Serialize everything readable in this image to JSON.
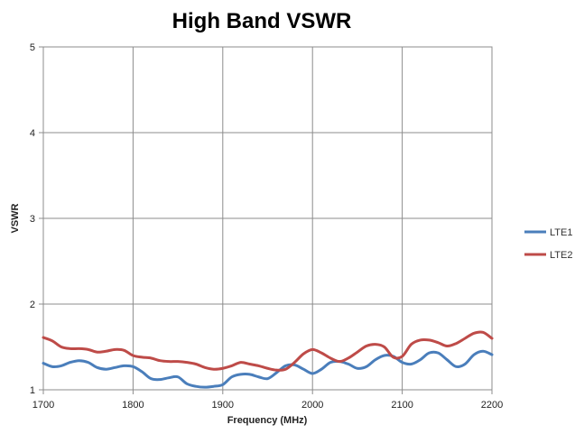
{
  "chart_data": {
    "type": "line",
    "title": "High Band VSWR",
    "xlabel": "Frequency (MHz)",
    "ylabel": "VSWR",
    "xlim": [
      1700,
      2200
    ],
    "ylim": [
      1,
      5
    ],
    "x_ticks": [
      1700,
      1800,
      1900,
      2000,
      2100,
      2200
    ],
    "y_ticks": [
      1,
      2,
      3,
      4,
      5
    ],
    "grid": true,
    "legend": "right",
    "series": [
      {
        "name": "LTE1",
        "color": "#4a7ebb",
        "x": [
          1700,
          1710,
          1720,
          1730,
          1740,
          1750,
          1760,
          1770,
          1780,
          1790,
          1800,
          1810,
          1820,
          1830,
          1840,
          1850,
          1860,
          1870,
          1880,
          1890,
          1900,
          1910,
          1920,
          1930,
          1940,
          1950,
          1960,
          1970,
          1980,
          1990,
          2000,
          2010,
          2020,
          2030,
          2040,
          2050,
          2060,
          2070,
          2080,
          2090,
          2100,
          2110,
          2120,
          2130,
          2140,
          2150,
          2160,
          2170,
          2180,
          2190,
          2200
        ],
        "y": [
          1.31,
          1.27,
          1.28,
          1.32,
          1.34,
          1.32,
          1.26,
          1.24,
          1.26,
          1.28,
          1.27,
          1.21,
          1.13,
          1.12,
          1.14,
          1.15,
          1.07,
          1.04,
          1.03,
          1.04,
          1.06,
          1.15,
          1.18,
          1.18,
          1.15,
          1.13,
          1.2,
          1.28,
          1.29,
          1.24,
          1.19,
          1.24,
          1.32,
          1.33,
          1.3,
          1.25,
          1.27,
          1.35,
          1.4,
          1.39,
          1.32,
          1.3,
          1.35,
          1.43,
          1.43,
          1.35,
          1.27,
          1.3,
          1.41,
          1.45,
          1.41
        ]
      },
      {
        "name": "LTE2",
        "color": "#be4b48",
        "x": [
          1700,
          1710,
          1720,
          1730,
          1740,
          1750,
          1760,
          1770,
          1780,
          1790,
          1800,
          1810,
          1820,
          1830,
          1840,
          1850,
          1860,
          1870,
          1880,
          1890,
          1900,
          1910,
          1920,
          1930,
          1940,
          1950,
          1960,
          1970,
          1980,
          1990,
          2000,
          2010,
          2020,
          2030,
          2040,
          2050,
          2060,
          2070,
          2080,
          2090,
          2100,
          2110,
          2120,
          2130,
          2140,
          2150,
          2160,
          2170,
          2180,
          2190,
          2200
        ],
        "y": [
          1.61,
          1.57,
          1.5,
          1.48,
          1.48,
          1.47,
          1.44,
          1.45,
          1.47,
          1.46,
          1.4,
          1.38,
          1.37,
          1.34,
          1.33,
          1.33,
          1.32,
          1.3,
          1.26,
          1.24,
          1.25,
          1.28,
          1.32,
          1.3,
          1.28,
          1.25,
          1.23,
          1.24,
          1.32,
          1.42,
          1.47,
          1.43,
          1.37,
          1.33,
          1.37,
          1.44,
          1.51,
          1.53,
          1.5,
          1.38,
          1.39,
          1.53,
          1.58,
          1.58,
          1.55,
          1.51,
          1.54,
          1.6,
          1.66,
          1.67,
          1.6
        ]
      }
    ]
  }
}
